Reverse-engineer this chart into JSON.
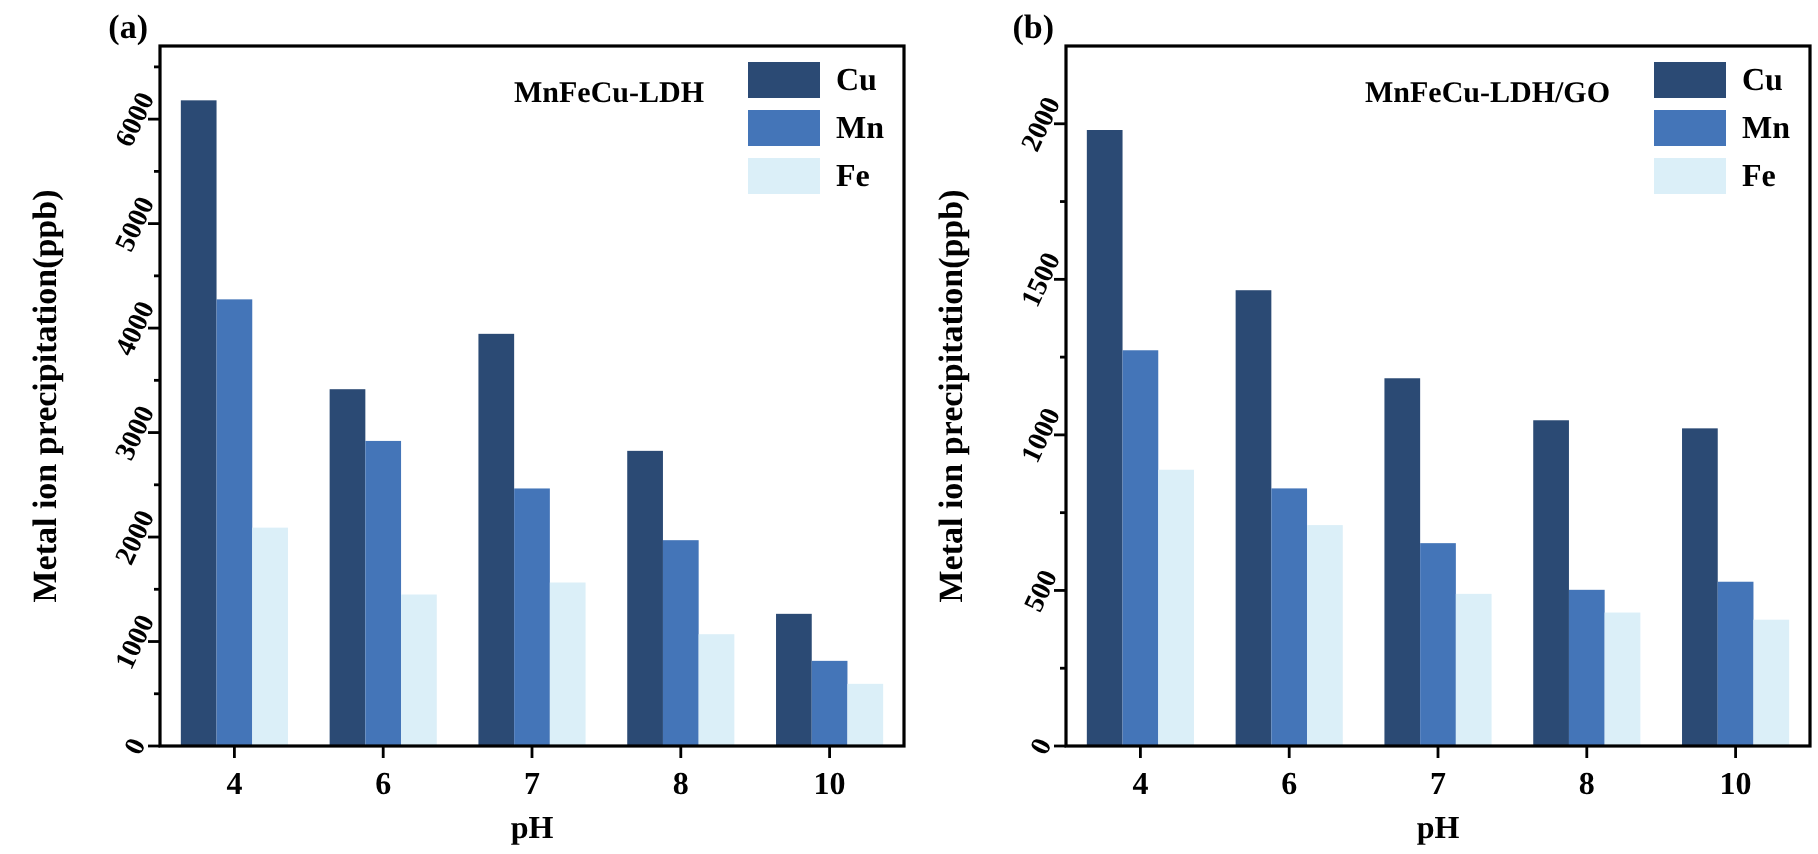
{
  "chart_data": [
    {
      "type": "bar",
      "title": "(a)",
      "xlabel": "pH",
      "ylabel": "Metal ion precipitation(ppb)",
      "annotations": [
        "MnFeCu-LDH"
      ],
      "categories": [
        "4",
        "6",
        "7",
        "8",
        "10"
      ],
      "series": [
        {
          "name": "Cu",
          "color": "#2b4a74",
          "values": [
            6180,
            3415,
            3945,
            2825,
            1265
          ]
        },
        {
          "name": "Mn",
          "color": "#4475b8",
          "values": [
            4275,
            2920,
            2465,
            1970,
            815
          ]
        },
        {
          "name": "Fe",
          "color": "#dbeff8",
          "values": [
            2090,
            1450,
            1565,
            1070,
            595
          ]
        }
      ],
      "ylim": [
        0,
        6700
      ],
      "yticks": [
        0,
        {
          "value": 500,
          "label": null
        },
        1000,
        {
          "value": 1500,
          "label": null
        },
        2000,
        {
          "value": 2500,
          "label": null
        },
        3000,
        {
          "value": 3500,
          "label": null
        },
        4000,
        {
          "value": 4500,
          "label": null
        },
        5000,
        {
          "value": 5500,
          "label": null
        },
        6000,
        {
          "value": 6500,
          "label": null
        }
      ],
      "legend": "top right",
      "grid": false
    },
    {
      "type": "bar",
      "title": "(b)",
      "xlabel": "pH",
      "ylabel": "Metal ion precipitation(ppb)",
      "annotations": [
        "MnFeCu-LDH/GO"
      ],
      "categories": [
        "4",
        "6",
        "7",
        "8",
        "10"
      ],
      "series": [
        {
          "name": "Cu",
          "color": "#2b4a74",
          "values": [
            1980,
            1465,
            1182,
            1047,
            1021
          ]
        },
        {
          "name": "Mn",
          "color": "#4475b8",
          "values": [
            1272,
            828,
            652,
            502,
            528
          ]
        },
        {
          "name": "Fe",
          "color": "#dbeff8",
          "values": [
            888,
            710,
            489,
            429,
            406
          ]
        }
      ],
      "ylim": [
        0,
        2250
      ],
      "yticks": [
        0,
        {
          "value": 250,
          "label": null
        },
        500,
        {
          "value": 750,
          "label": null
        },
        1000,
        {
          "value": 1250,
          "label": null
        },
        1500,
        {
          "value": 1750,
          "label": null
        },
        2000
      ],
      "legend": "top right",
      "grid": false
    }
  ]
}
